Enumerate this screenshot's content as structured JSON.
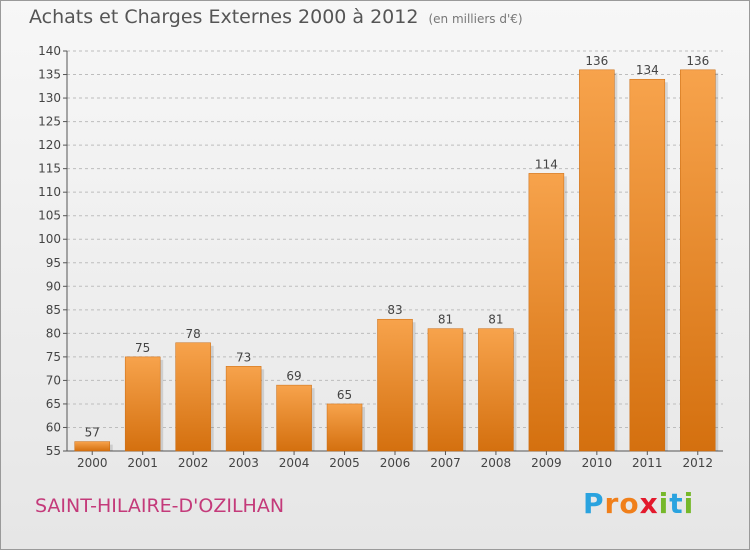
{
  "chart_data": {
    "type": "bar",
    "title": "Achats et Charges Externes 2000 à 2012",
    "subtitle": "(en milliers d'€)",
    "categories": [
      "2000",
      "2001",
      "2002",
      "2003",
      "2004",
      "2005",
      "2006",
      "2007",
      "2008",
      "2009",
      "2010",
      "2011",
      "2012"
    ],
    "values": [
      57,
      75,
      78,
      73,
      69,
      65,
      83,
      81,
      81,
      114,
      136,
      134,
      136
    ],
    "ylim": [
      55,
      140
    ],
    "yticks": [
      55,
      60,
      65,
      70,
      75,
      80,
      85,
      90,
      95,
      100,
      105,
      110,
      115,
      120,
      125,
      130,
      135,
      140
    ],
    "grid": true,
    "bar_color": "#f08c2c",
    "data_labels": true
  },
  "footer": {
    "commune": "SAINT-HILAIRE-D'OZILHAN",
    "logo_letters": [
      "P",
      "r",
      "o",
      "x",
      "i",
      "t",
      "i"
    ],
    "logo_colors": [
      "#2aa3df",
      "#f07f1a",
      "#f07f1a",
      "#e3192c",
      "#76b82a",
      "#2aa3df",
      "#76b82a"
    ]
  },
  "colors": {
    "commune_text": "#c43a7a",
    "axis": "#555555",
    "grid": "#bdbdbd"
  }
}
